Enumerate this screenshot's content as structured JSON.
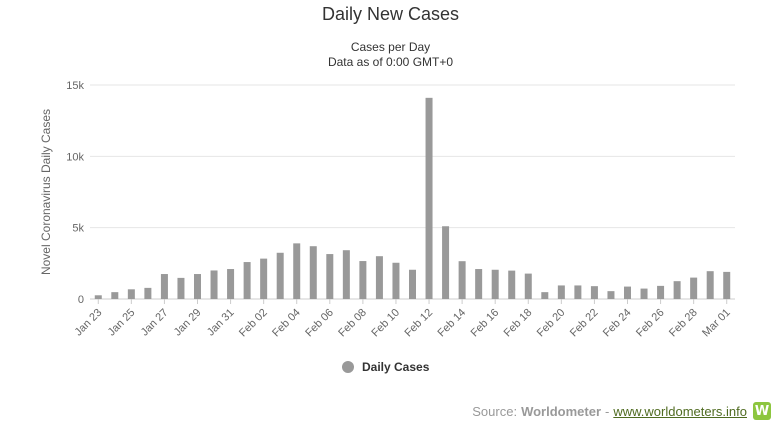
{
  "chart_data": {
    "type": "bar",
    "title": "Daily New Cases",
    "subtitle": [
      "Cases per Day",
      "Data as of 0:00 GMT+0"
    ],
    "ylabel": "Novel Coronavirus Daily Cases",
    "xlabel": "",
    "ylim": [
      0,
      15000
    ],
    "yticks": [
      0,
      5000,
      10000,
      15000
    ],
    "ytick_labels": [
      "0",
      "5k",
      "10k",
      "15k"
    ],
    "grid": true,
    "legend_position": "bottom-center",
    "bar_color": "#999999",
    "categories": [
      "Jan 23",
      "Jan 24",
      "Jan 25",
      "Jan 26",
      "Jan 27",
      "Jan 28",
      "Jan 29",
      "Jan 30",
      "Jan 31",
      "Feb 01",
      "Feb 02",
      "Feb 03",
      "Feb 04",
      "Feb 05",
      "Feb 06",
      "Feb 07",
      "Feb 08",
      "Feb 09",
      "Feb 10",
      "Feb 11",
      "Feb 12",
      "Feb 13",
      "Feb 14",
      "Feb 15",
      "Feb 16",
      "Feb 17",
      "Feb 18",
      "Feb 19",
      "Feb 20",
      "Feb 21",
      "Feb 22",
      "Feb 23",
      "Feb 24",
      "Feb 25",
      "Feb 26",
      "Feb 27",
      "Feb 28",
      "Feb 29",
      "Mar 01"
    ],
    "tick_labels_shown": [
      "Jan 23",
      "Jan 25",
      "Jan 27",
      "Jan 29",
      "Jan 31",
      "Feb 02",
      "Feb 04",
      "Feb 06",
      "Feb 08",
      "Feb 10",
      "Feb 12",
      "Feb 14",
      "Feb 16",
      "Feb 18",
      "Feb 20",
      "Feb 22",
      "Feb 24",
      "Feb 26",
      "Feb 28",
      "Mar 01"
    ],
    "series": [
      {
        "name": "Daily Cases",
        "values": [
          260,
          480,
          680,
          780,
          1750,
          1480,
          1750,
          2000,
          2100,
          2590,
          2830,
          3240,
          3900,
          3700,
          3150,
          3420,
          2660,
          3000,
          2540,
          2050,
          14100,
          5100,
          2650,
          2100,
          2050,
          1990,
          1780,
          480,
          950,
          950,
          900,
          550,
          870,
          730,
          920,
          1250,
          1500,
          1950,
          1900
        ]
      }
    ]
  },
  "legend": {
    "label": "Daily Cases"
  },
  "source": {
    "prefix": "Source:",
    "brand": "Worldometer",
    "separator": "-",
    "link": "www.worldometers.info",
    "logo_letter": "W"
  }
}
